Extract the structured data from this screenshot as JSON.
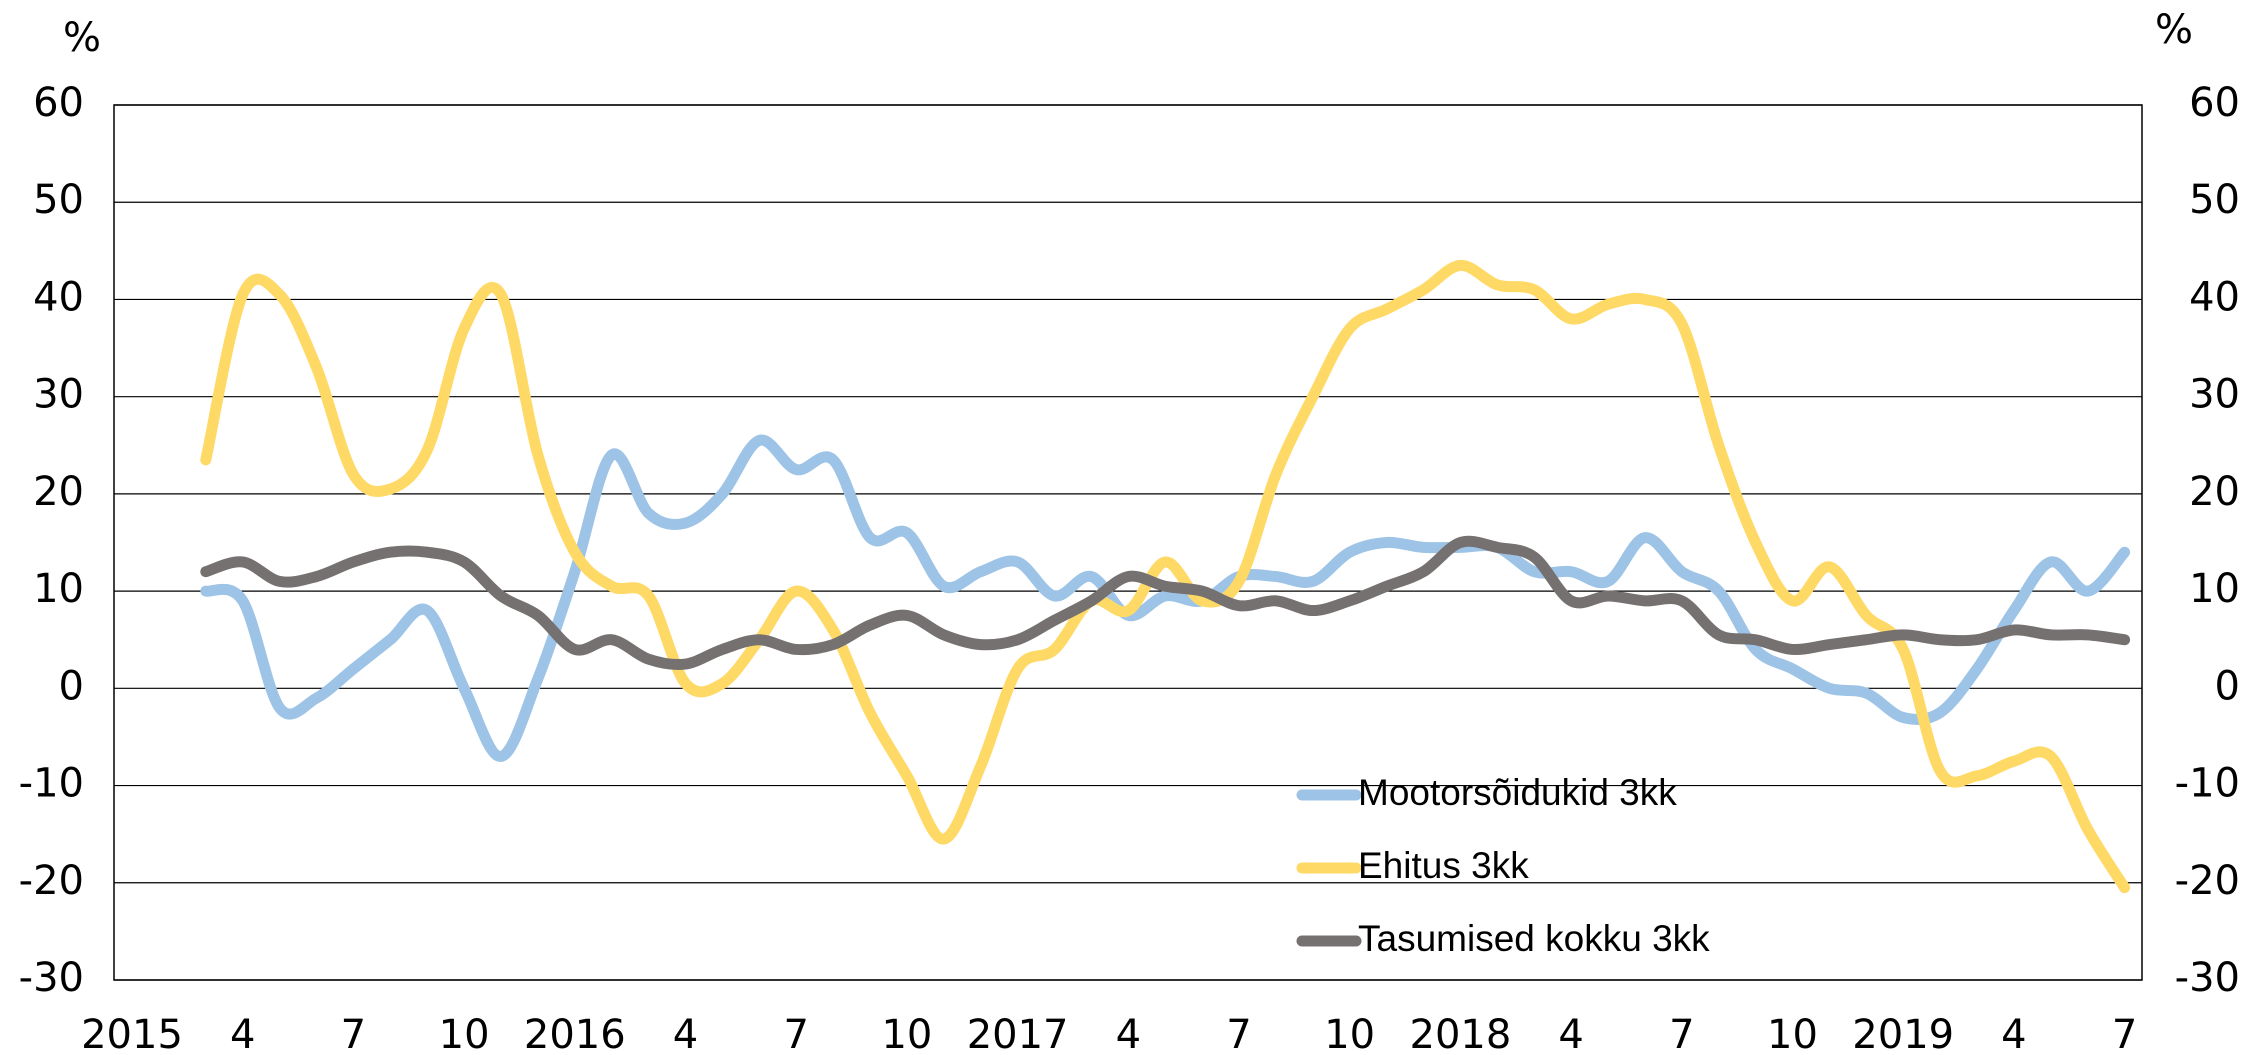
{
  "chart_data": {
    "type": "line",
    "y_label": "%",
    "y2_label": "%",
    "categories": [
      "2015",
      null,
      null,
      "4",
      null,
      null,
      "7",
      null,
      null,
      "10",
      null,
      null,
      "2016",
      null,
      null,
      "4",
      null,
      null,
      "7",
      null,
      null,
      "10",
      null,
      null,
      "2017",
      null,
      null,
      "4",
      null,
      null,
      "7",
      null,
      null,
      "10",
      null,
      null,
      "2018",
      null,
      null,
      "4",
      null,
      null,
      "7",
      null,
      null,
      "10",
      null,
      null,
      "2019",
      null,
      null,
      "4",
      null,
      null,
      "7"
    ],
    "series": [
      {
        "name": "Mootorsõidukid 3kk",
        "color": "#9dc3e6",
        "values": [
          null,
          null,
          10,
          9,
          -2,
          -1,
          2,
          5,
          8,
          0,
          -7,
          1,
          12,
          24,
          18,
          17,
          20,
          25.5,
          22.5,
          23.5,
          15.5,
          16,
          10.5,
          12,
          13,
          9.5,
          11.5,
          7.5,
          9.5,
          9,
          11.5,
          11.5,
          11,
          14,
          15,
          14.5,
          14.5,
          14.5,
          12,
          12,
          11,
          15.5,
          12,
          10,
          4,
          2,
          0,
          -0.5,
          -3,
          -2.5,
          2,
          8,
          13,
          10,
          14
        ]
      },
      {
        "name": "Ehitus 3kk",
        "color": "#ffd966",
        "values": [
          null,
          null,
          23.5,
          40.5,
          40.5,
          33,
          22,
          20.5,
          24.5,
          37,
          40.5,
          24,
          14,
          10.5,
          9.5,
          0.5,
          0.5,
          5,
          10,
          6,
          -2.5,
          -9,
          -15.5,
          -8,
          2,
          4,
          9,
          8,
          13,
          9,
          11,
          22,
          30,
          37,
          39,
          41,
          43.5,
          41.5,
          41,
          38,
          39.5,
          40,
          37.5,
          25,
          15,
          9,
          12.5,
          7.5,
          4,
          -8.5,
          -9,
          -7.5,
          -7,
          -14.5,
          -20.5
        ]
      },
      {
        "name": "Tasumised kokku 3kk",
        "color": "#767171",
        "values": [
          null,
          null,
          12,
          13,
          11,
          11.5,
          13,
          14,
          14,
          13,
          9.5,
          7.5,
          4,
          5,
          3,
          2.5,
          4,
          5,
          4,
          4.5,
          6.5,
          7.5,
          5.5,
          4.5,
          5,
          7,
          9,
          11.5,
          10.5,
          10,
          8.5,
          9,
          8,
          9,
          10.5,
          12,
          15,
          14.5,
          13.5,
          9,
          9.5,
          9,
          9,
          5.5,
          5,
          4,
          4.5,
          5,
          5.5,
          5,
          5,
          6,
          5.5,
          5.5,
          5
        ]
      }
    ],
    "ylim": [
      -30,
      60
    ],
    "yticks": [
      -30,
      -20,
      -10,
      0,
      10,
      20,
      30,
      40,
      50,
      60
    ],
    "y2lim": [
      -30,
      60
    ],
    "y2ticks": [
      -30,
      -20,
      -10,
      0,
      10,
      20,
      30,
      40,
      50,
      60
    ],
    "grid": true
  }
}
